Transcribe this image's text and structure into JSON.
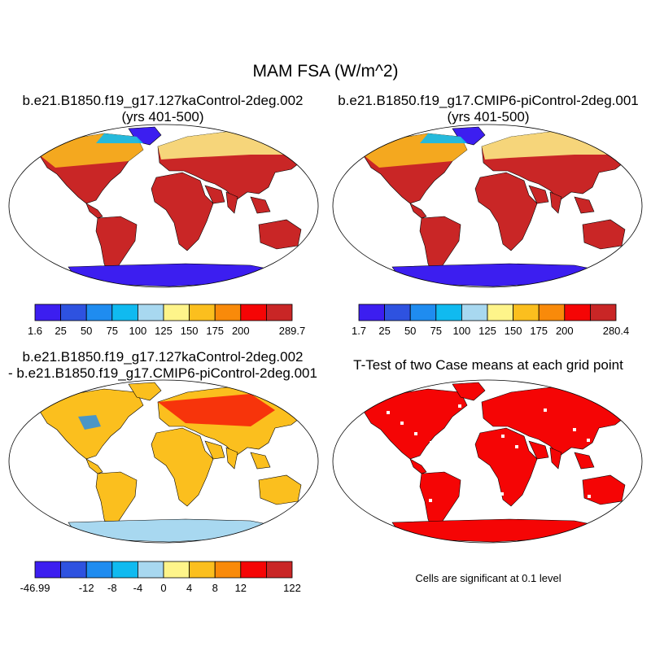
{
  "main_title": "MAM FSA (W/m^2)",
  "panels": [
    {
      "title_lines": [
        "b.e21.B1850.f19_g17.127kaControl-2deg.002",
        "(yrs 401-500)"
      ],
      "type": "field",
      "colorbar": {
        "colors": [
          "#3c1ef0",
          "#2e52e0",
          "#1f8cf0",
          "#10baf0",
          "#a8d8f0",
          "#fef48a",
          "#fbbf1e",
          "#f98a0a",
          "#f50505",
          "#c92626"
        ],
        "labels": [
          "1.6",
          "25",
          "50",
          "75",
          "100",
          "125",
          "150",
          "175",
          "200",
          "289.7"
        ]
      }
    },
    {
      "title_lines": [
        "b.e21.B1850.f19_g17.CMIP6-piControl-2deg.001",
        "(yrs 401-500)"
      ],
      "type": "field",
      "colorbar": {
        "colors": [
          "#3c1ef0",
          "#2e52e0",
          "#1f8cf0",
          "#10baf0",
          "#a8d8f0",
          "#fef48a",
          "#fbbf1e",
          "#f98a0a",
          "#f50505",
          "#c92626"
        ],
        "labels": [
          "1.7",
          "25",
          "50",
          "75",
          "100",
          "125",
          "150",
          "175",
          "200",
          "280.4"
        ]
      }
    },
    {
      "title_lines": [
        "b.e21.B1850.f19_g17.127kaControl-2deg.002",
        "- b.e21.B1850.f19_g17.CMIP6-piControl-2deg.001"
      ],
      "type": "difference",
      "colorbar": {
        "colors": [
          "#3c1ef0",
          "#2e52e0",
          "#1f8cf0",
          "#10baf0",
          "#a8d8f0",
          "#fef48a",
          "#fbbf1e",
          "#f98a0a",
          "#f50505",
          "#c92626"
        ],
        "labels": [
          "-46.99",
          "-12",
          "-8",
          "-4",
          "0",
          "4",
          "8",
          "12",
          "122"
        ]
      }
    },
    {
      "title_lines": [
        "T-Test of two Case means at each grid point"
      ],
      "type": "significance",
      "note": "Cells are significant at 0.1 level"
    }
  ],
  "colors": {
    "land_polar": "#3c1ef0",
    "land_hot": "#c92626",
    "significant": "#f50505",
    "diff_warm": "#fbbf1e",
    "diff_antarctica": "#a8d8f0"
  }
}
